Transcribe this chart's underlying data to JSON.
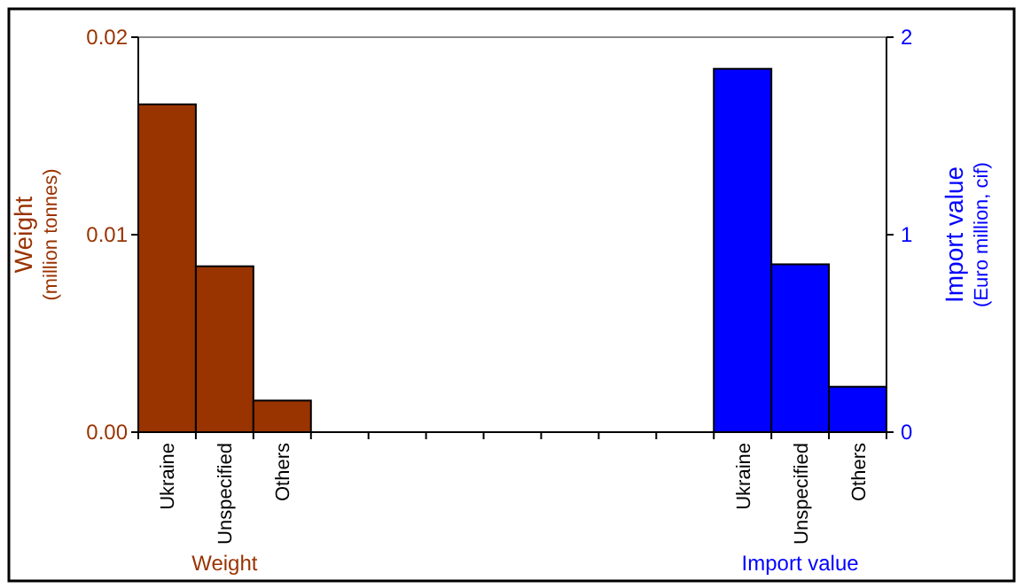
{
  "chart_data": {
    "type": "bar",
    "categories": [
      "Ukraine",
      "Unspecified",
      "Others",
      null,
      null,
      null,
      null,
      null,
      null,
      null,
      "Ukraine",
      "Unspecified",
      "Others"
    ],
    "series": [
      {
        "name": "Weight",
        "color": "#993300",
        "values": [
          0.0166,
          0.0084,
          0.0016,
          null,
          null,
          null,
          null,
          null,
          null,
          null,
          null,
          null,
          null
        ]
      },
      {
        "name": "Import value",
        "color": "#0000ff",
        "axis": "y2",
        "values": [
          null,
          null,
          null,
          null,
          null,
          null,
          null,
          null,
          null,
          null,
          1.84,
          0.85,
          0.23
        ]
      }
    ],
    "ylabel": "Weight\n(million tonnes)",
    "y2label": "Import value\n(Euro million, cif)",
    "ylim": [
      0,
      0.02
    ],
    "yticks": [
      {
        "value": 0,
        "label": "0.00"
      },
      0.01,
      0.02
    ],
    "y2lim": [
      0,
      2
    ],
    "y2ticks": [
      0,
      1,
      2
    ]
  }
}
